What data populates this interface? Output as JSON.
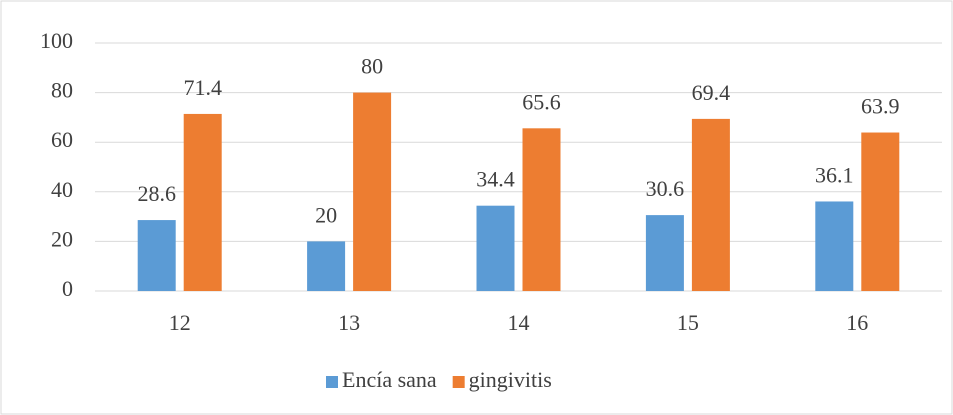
{
  "chart_data": {
    "type": "bar",
    "categories": [
      "12",
      "13",
      "14",
      "15",
      "16"
    ],
    "series": [
      {
        "name": "Encía sana",
        "color": "#5b9bd5",
        "values": [
          28.6,
          20,
          34.4,
          30.6,
          36.1
        ]
      },
      {
        "name": "gingivitis",
        "color": "#ed7d31",
        "values": [
          71.4,
          80,
          65.6,
          69.4,
          63.9
        ]
      }
    ],
    "ylim": [
      0,
      100
    ],
    "yticks": [
      0,
      20,
      40,
      60,
      80,
      100
    ],
    "grid": true,
    "legend": "bottom"
  }
}
